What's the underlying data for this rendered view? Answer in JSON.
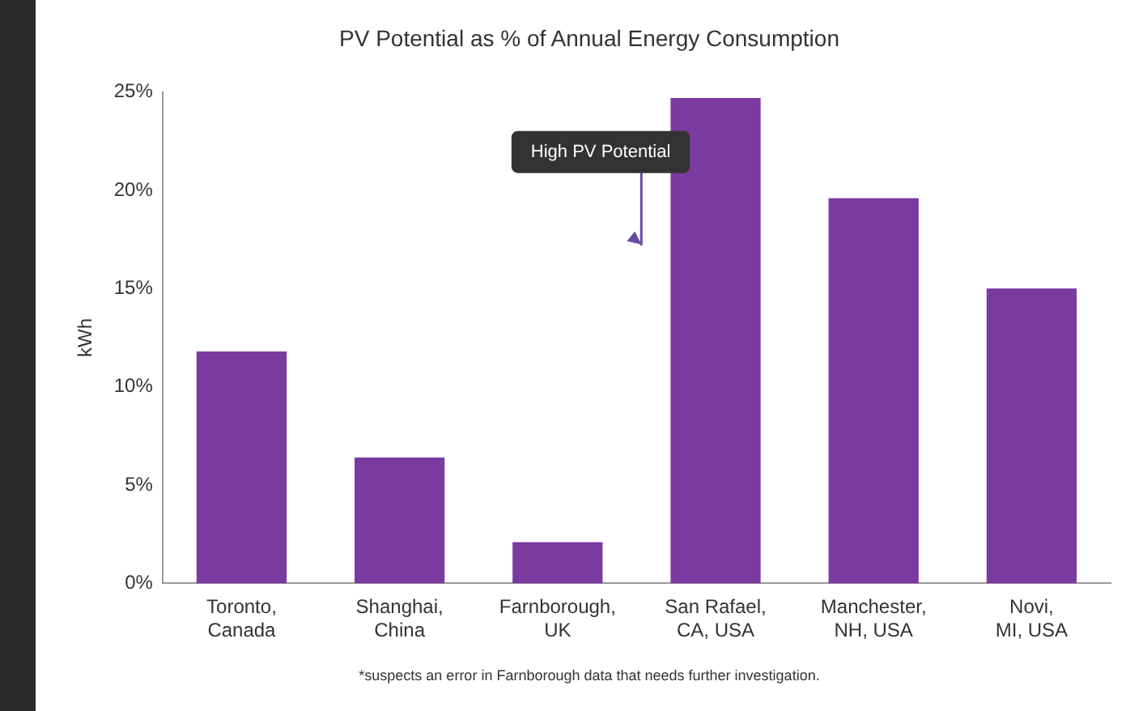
{
  "chart_data": {
    "type": "bar",
    "title": "PV Potential as % of Annual Energy Consumption",
    "ylabel": "kWh",
    "categories": [
      "Toronto, Canada",
      "Shanghai, China",
      "Farnborough, UK",
      "San Rafael, CA, USA",
      "Manchester, NH, USA",
      "Novi, MI, USA"
    ],
    "values": [
      11.8,
      6.4,
      2.1,
      24.7,
      19.6,
      15
    ],
    "color": "#7b3aa0",
    "ylim": [
      0,
      25
    ],
    "yticks": [
      {
        "value": 0,
        "label": "0%"
      },
      {
        "value": 5,
        "label": "5%"
      },
      {
        "value": 10,
        "label": "10%"
      },
      {
        "value": 15,
        "label": "15%"
      },
      {
        "value": 20,
        "label": "20%"
      },
      {
        "value": 25,
        "label": "25%"
      }
    ],
    "grid": false,
    "legend": false,
    "annotations": [
      "High PV Potential",
      "*suspects an error in Farnborough data that needs further investigation."
    ]
  }
}
